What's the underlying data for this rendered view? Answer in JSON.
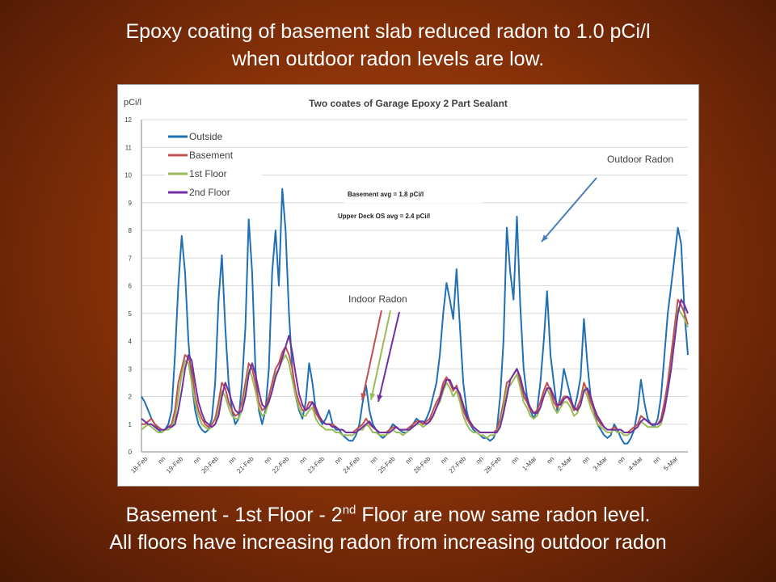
{
  "headline": {
    "line1": "Epoxy coating of basement slab reduced radon to 1.0 pCi/l",
    "line2": "when outdoor radon levels are low."
  },
  "footer": {
    "line1_prefix": "Basement - 1st Floor - 2",
    "line1_sup": "nd",
    "line1_suffix": " Floor are now same radon level.",
    "line2": "All floors have increasing radon from increasing outdoor radon"
  },
  "chart_data": {
    "type": "line",
    "title": "Two coates of Garage Epoxy 2 Part Sealant",
    "ylabel": "pCi/l",
    "xlabel": "",
    "ylim": [
      0,
      12
    ],
    "yticks": [
      0,
      1,
      2,
      3,
      4,
      5,
      6,
      7,
      8,
      9,
      10,
      11,
      12
    ],
    "grid": true,
    "legend_position": "top-left",
    "x_tick_labels": [
      "18-Feb",
      "nn",
      "19-Feb",
      "nn",
      "20-Feb",
      "nn",
      "21-Feb",
      "nn",
      "22-Feb",
      "nn",
      "23-Feb",
      "nn",
      "24-Feb",
      "nn",
      "25-Feb",
      "nn",
      "26-Feb",
      "nn",
      "27-Feb",
      "nn",
      "28-Feb",
      "nn",
      "1-Mar",
      "nn",
      "2-Mar",
      "nn",
      "3-Mar",
      "nn",
      "4-Mar",
      "nn",
      "5-Mar"
    ],
    "series": [
      {
        "name": "Outside",
        "color": "#1f6fb5",
        "values": [
          2.0,
          1.8,
          1.5,
          1.2,
          1.0,
          0.8,
          0.7,
          0.8,
          1.0,
          1.5,
          3.5,
          6.0,
          7.8,
          6.5,
          4.0,
          2.5,
          1.5,
          1.0,
          0.8,
          0.7,
          0.8,
          1.2,
          2.5,
          5.5,
          7.1,
          4.5,
          2.5,
          1.5,
          1.0,
          1.2,
          2.5,
          4.5,
          8.4,
          6.5,
          3.0,
          1.5,
          1.0,
          1.5,
          3.0,
          6.5,
          8.0,
          6.0,
          9.5,
          8.0,
          5.0,
          3.0,
          2.0,
          1.5,
          1.2,
          1.8,
          3.2,
          2.5,
          1.5,
          1.2,
          1.0,
          1.2,
          1.5,
          1.0,
          0.8,
          0.8,
          0.6,
          0.5,
          0.4,
          0.4,
          0.6,
          1.0,
          1.8,
          2.4,
          1.5,
          1.0,
          0.8,
          0.6,
          0.5,
          0.6,
          0.8,
          1.0,
          0.9,
          0.8,
          0.7,
          0.7,
          0.8,
          1.0,
          1.2,
          1.1,
          1.0,
          1.2,
          1.5,
          2.0,
          2.5,
          3.5,
          5.0,
          6.1,
          5.5,
          4.8,
          6.6,
          4.5,
          2.5,
          1.5,
          1.0,
          0.8,
          0.7,
          0.6,
          0.5,
          0.5,
          0.4,
          0.5,
          0.8,
          2.0,
          4.0,
          8.1,
          6.5,
          5.5,
          8.5,
          5.3,
          3.0,
          2.0,
          1.5,
          1.2,
          1.5,
          2.5,
          4.0,
          5.8,
          3.5,
          2.5,
          1.5,
          2.0,
          3.0,
          2.5,
          2.0,
          1.5,
          2.0,
          2.7,
          4.8,
          3.2,
          2.0,
          1.5,
          1.0,
          0.8,
          0.6,
          0.5,
          0.6,
          1.0,
          0.8,
          0.5,
          0.3,
          0.3,
          0.5,
          0.8,
          1.5,
          2.6,
          1.8,
          1.2,
          1.0,
          0.9,
          1.2,
          2.0,
          3.5,
          5.0,
          6.0,
          7.0,
          8.1,
          7.5,
          5.0,
          3.5
        ]
      },
      {
        "name": "Basement",
        "color": "#c0504d",
        "values": [
          1.0,
          1.0,
          1.1,
          1.2,
          1.0,
          0.9,
          0.8,
          0.8,
          0.9,
          1.0,
          1.5,
          2.5,
          3.0,
          3.5,
          3.4,
          3.0,
          2.0,
          1.5,
          1.2,
          1.0,
          0.9,
          1.0,
          1.2,
          1.8,
          2.5,
          2.3,
          1.8,
          1.5,
          1.3,
          1.4,
          1.8,
          2.5,
          3.2,
          3.0,
          2.5,
          1.8,
          1.5,
          1.6,
          2.0,
          2.5,
          3.0,
          3.2,
          3.6,
          3.8,
          3.5,
          3.0,
          2.2,
          1.8,
          1.5,
          1.5,
          1.8,
          1.8,
          1.4,
          1.2,
          1.1,
          1.0,
          1.0,
          1.0,
          0.9,
          0.8,
          0.8,
          0.7,
          0.7,
          0.7,
          0.8,
          0.9,
          1.0,
          1.2,
          1.0,
          0.9,
          0.8,
          0.7,
          0.7,
          0.7,
          0.8,
          0.9,
          0.9,
          0.8,
          0.8,
          0.8,
          0.9,
          1.0,
          1.1,
          1.1,
          1.0,
          1.1,
          1.2,
          1.5,
          1.8,
          2.0,
          2.5,
          2.7,
          2.5,
          2.2,
          2.4,
          2.0,
          1.5,
          1.2,
          1.0,
          0.9,
          0.8,
          0.7,
          0.7,
          0.7,
          0.7,
          0.7,
          0.8,
          1.2,
          1.8,
          2.5,
          2.6,
          2.8,
          3.0,
          2.5,
          2.0,
          1.8,
          1.5,
          1.4,
          1.5,
          1.8,
          2.2,
          2.5,
          2.2,
          1.8,
          1.6,
          1.8,
          2.0,
          2.0,
          1.8,
          1.5,
          1.6,
          1.9,
          2.5,
          2.2,
          1.8,
          1.5,
          1.2,
          1.0,
          0.9,
          0.8,
          0.8,
          0.9,
          0.8,
          0.8,
          0.7,
          0.7,
          0.8,
          0.9,
          1.0,
          1.3,
          1.2,
          1.1,
          1.0,
          1.0,
          1.0,
          1.2,
          1.8,
          2.5,
          3.5,
          4.5,
          5.5,
          5.3,
          5.0,
          4.6
        ]
      },
      {
        "name": "1st Floor",
        "color": "#9bbb59",
        "values": [
          0.8,
          0.9,
          1.0,
          0.9,
          0.8,
          0.7,
          0.7,
          0.8,
          0.8,
          0.9,
          1.2,
          2.0,
          2.8,
          3.3,
          3.2,
          2.5,
          1.8,
          1.3,
          1.0,
          0.9,
          0.8,
          0.9,
          1.0,
          1.5,
          2.2,
          2.0,
          1.6,
          1.3,
          1.2,
          1.2,
          1.5,
          2.2,
          3.0,
          2.7,
          2.2,
          1.6,
          1.3,
          1.4,
          1.8,
          2.2,
          2.8,
          3.0,
          3.3,
          3.5,
          3.2,
          2.6,
          2.0,
          1.6,
          1.3,
          1.3,
          1.5,
          1.6,
          1.2,
          1.0,
          0.9,
          0.8,
          0.8,
          0.8,
          0.7,
          0.7,
          0.6,
          0.6,
          0.6,
          0.6,
          0.7,
          0.8,
          0.8,
          1.0,
          0.9,
          0.7,
          0.7,
          0.6,
          0.6,
          0.6,
          0.7,
          0.8,
          0.7,
          0.7,
          0.6,
          0.7,
          0.8,
          0.9,
          1.0,
          1.0,
          0.9,
          1.0,
          1.1,
          1.3,
          1.6,
          1.8,
          2.2,
          2.5,
          2.3,
          2.0,
          2.2,
          1.8,
          1.3,
          1.0,
          0.8,
          0.7,
          0.7,
          0.6,
          0.6,
          0.5,
          0.6,
          0.6,
          0.7,
          1.0,
          1.6,
          2.3,
          2.4,
          2.6,
          2.8,
          2.3,
          1.8,
          1.6,
          1.3,
          1.2,
          1.3,
          1.6,
          2.0,
          2.3,
          2.0,
          1.6,
          1.4,
          1.6,
          1.8,
          1.8,
          1.6,
          1.3,
          1.4,
          1.7,
          2.3,
          2.0,
          1.6,
          1.3,
          1.0,
          0.9,
          0.8,
          0.7,
          0.7,
          0.8,
          0.7,
          0.7,
          0.6,
          0.6,
          0.7,
          0.8,
          0.9,
          1.1,
          1.0,
          0.9,
          0.9,
          0.9,
          0.9,
          1.0,
          1.5,
          2.2,
          3.0,
          4.0,
          5.2,
          5.0,
          4.8,
          4.5
        ]
      },
      {
        "name": "2nd Floor",
        "color": "#7030a0",
        "values": [
          1.2,
          1.1,
          1.0,
          1.0,
          0.9,
          0.8,
          0.8,
          0.8,
          0.9,
          0.9,
          1.0,
          1.5,
          2.2,
          3.0,
          3.5,
          3.3,
          2.5,
          1.8,
          1.4,
          1.1,
          1.0,
          0.9,
          1.0,
          1.3,
          2.0,
          2.5,
          2.2,
          1.8,
          1.5,
          1.4,
          1.5,
          2.0,
          2.8,
          3.2,
          2.8,
          2.2,
          1.7,
          1.6,
          1.8,
          2.2,
          2.7,
          3.0,
          3.4,
          3.8,
          4.2,
          3.6,
          2.8,
          2.1,
          1.7,
          1.5,
          1.6,
          1.8,
          1.6,
          1.3,
          1.1,
          1.0,
          1.0,
          0.9,
          0.9,
          0.8,
          0.8,
          0.7,
          0.7,
          0.7,
          0.7,
          0.8,
          0.9,
          1.0,
          1.1,
          0.9,
          0.8,
          0.7,
          0.7,
          0.7,
          0.7,
          0.8,
          0.9,
          0.8,
          0.8,
          0.8,
          0.8,
          0.9,
          1.0,
          1.1,
          1.1,
          1.0,
          1.1,
          1.3,
          1.6,
          1.9,
          2.3,
          2.6,
          2.6,
          2.3,
          2.3,
          2.1,
          1.7,
          1.3,
          1.1,
          0.9,
          0.8,
          0.7,
          0.7,
          0.7,
          0.7,
          0.7,
          0.7,
          0.9,
          1.4,
          2.0,
          2.6,
          2.8,
          3.0,
          2.7,
          2.2,
          1.9,
          1.6,
          1.4,
          1.4,
          1.6,
          2.0,
          2.3,
          2.3,
          2.0,
          1.7,
          1.7,
          1.9,
          2.0,
          1.9,
          1.6,
          1.5,
          1.7,
          2.2,
          2.3,
          2.0,
          1.6,
          1.3,
          1.1,
          0.9,
          0.8,
          0.8,
          0.8,
          0.8,
          0.8,
          0.7,
          0.7,
          0.7,
          0.8,
          0.9,
          1.1,
          1.2,
          1.1,
          1.0,
          1.0,
          1.0,
          1.1,
          1.5,
          2.2,
          3.0,
          4.0,
          5.0,
          5.5,
          5.3,
          5.0
        ]
      }
    ],
    "annotations": {
      "basement_avg": "Basement avg =  1.8 pCi/l",
      "upper_deck_avg": "Upper Deck OS avg = 2.4 pCi/l",
      "outdoor_radon": "Outdoor Radon",
      "indoor_radon": "Indoor Radon",
      "arrow_color": "#4a7ebb"
    }
  }
}
